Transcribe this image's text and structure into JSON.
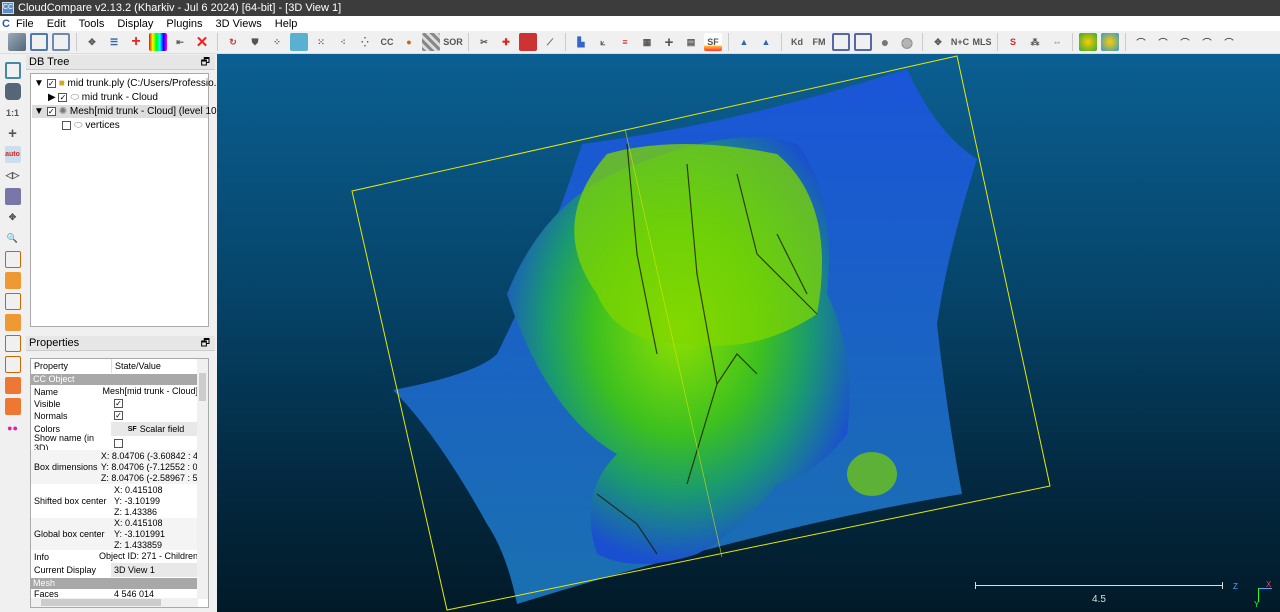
{
  "window": {
    "title": "CloudCompare v2.13.2 (Kharkiv - Jul  6 2024) [64-bit] - [3D View 1]",
    "logo": "CC"
  },
  "menu": [
    "File",
    "Edit",
    "Tools",
    "Display",
    "Plugins",
    "3D Views",
    "Help"
  ],
  "toolbar_labels": {
    "cc": "CC",
    "sor": "SOR",
    "sf": "SF",
    "kd": "Kd",
    "fm": "FM",
    "nc": "N+C",
    "mls": "MLS"
  },
  "left_toolbar": {
    "one_to_one": "1:1",
    "auto": "auto"
  },
  "db_tree": {
    "title": "DB Tree",
    "items": [
      {
        "label": "mid trunk.ply (C:/Users/Professio...",
        "checked": true,
        "expanded": true
      },
      {
        "label": "mid trunk - Cloud",
        "checked": true,
        "expanded": false
      },
      {
        "label": "Mesh[mid trunk - Cloud] (level 10)",
        "checked": true,
        "expanded": true,
        "selected": true
      },
      {
        "label": "vertices",
        "checked": false
      }
    ]
  },
  "properties": {
    "title": "Properties",
    "header": [
      "Property",
      "State/Value"
    ],
    "sections": {
      "cc_object": "CC Object",
      "mesh": "Mesh"
    },
    "rows": {
      "name": [
        "Name",
        "Mesh[mid trunk - Cloud]"
      ],
      "visible": [
        "Visible",
        "✓"
      ],
      "normals": [
        "Normals",
        "✓"
      ],
      "colors": [
        "Colors",
        "Scalar field"
      ],
      "show_name": [
        "Show name (in 3D)",
        ""
      ],
      "box_dim": [
        "Box dimensions",
        "X: 8.04706 (-3.60842 : 4",
        "Y: 8.04706 (-7.12552 : 0",
        "Z: 8.04706 (-2.58967 : 5"
      ],
      "shifted": [
        "Shifted box center",
        "X: 0.415108",
        "Y: -3.10199",
        "Z: 1.43386"
      ],
      "global": [
        "Global box center",
        "X: 0.415108",
        "Y: -3.101991",
        "Z: 1.433859"
      ],
      "info": [
        "Info",
        "Object ID: 271 - Children"
      ],
      "display": [
        "Current Display",
        "3D View 1"
      ],
      "faces": [
        "Faces",
        "4 546 014"
      ]
    }
  },
  "view": {
    "scale_label": "4.5",
    "axes": {
      "z": "Z",
      "x": "X",
      "y": "Y"
    },
    "colors": {
      "bbox": "#e8e800",
      "mesh_low": "#1a4fd0",
      "mesh_high": "#9ee000"
    }
  }
}
